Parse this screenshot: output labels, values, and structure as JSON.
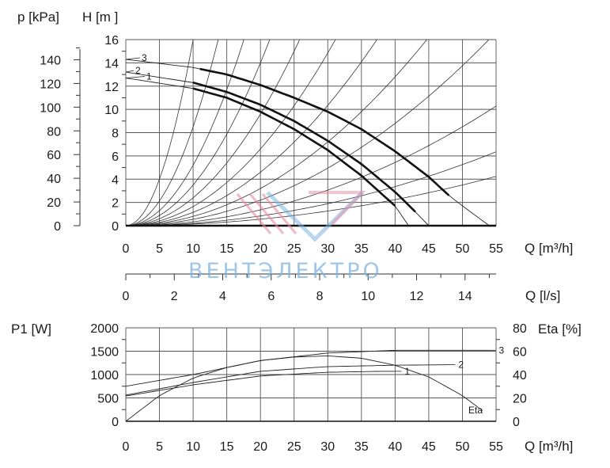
{
  "chart_data": [
    {
      "type": "line",
      "name_hint": "pump-head-curve",
      "ylabel_left_1": "p [kPa]",
      "ylabel_left_2": "H [m ]",
      "xlabel": "Q [m³/h]",
      "x_ticks": [
        "0",
        "5",
        "10",
        "15",
        "20",
        "25",
        "30",
        "35",
        "40",
        "45",
        "50",
        "55"
      ],
      "x_range": [
        0,
        55
      ],
      "h_ticks": [
        "0",
        "2",
        "4",
        "6",
        "8",
        "10",
        "12",
        "14",
        "16"
      ],
      "h_range": [
        0,
        16
      ],
      "p_ticks": [
        "0",
        "20",
        "40",
        "60",
        "80",
        "100",
        "120",
        "140"
      ],
      "p_range": [
        0,
        157
      ],
      "grid": true,
      "secondary_x": {
        "xlabel": "Q [l/s]",
        "ticks": [
          "0",
          "2",
          "4",
          "6",
          "8",
          "10",
          "12",
          "14"
        ],
        "range": [
          0,
          15.28
        ]
      },
      "series": [
        {
          "name": "1",
          "x": [
            0,
            10,
            15,
            20,
            25,
            30,
            35,
            40,
            42
          ],
          "y": [
            12.7,
            11.8,
            11.0,
            9.8,
            8.3,
            6.5,
            4.3,
            1.7,
            0
          ],
          "bold_range": [
            10,
            40
          ]
        },
        {
          "name": "2",
          "x": [
            0,
            10,
            15,
            20,
            25,
            30,
            35,
            40,
            43,
            45
          ],
          "y": [
            13.2,
            12.3,
            11.5,
            10.4,
            9.0,
            7.3,
            5.3,
            2.9,
            1.2,
            0
          ],
          "bold_range": [
            10,
            43
          ]
        },
        {
          "name": "3",
          "x": [
            0,
            10,
            15,
            20,
            25,
            30,
            35,
            40,
            45,
            48,
            50,
            54
          ],
          "y": [
            14.3,
            13.6,
            13.0,
            12.1,
            11.0,
            9.8,
            8.3,
            6.4,
            4.2,
            2.6,
            1.7,
            0
          ],
          "bold_range": [
            11,
            48
          ]
        }
      ],
      "system_curves_k": [
        0.16,
        0.085,
        0.052,
        0.035,
        0.024,
        0.0165,
        0.0115,
        0.008,
        0.0055,
        0.0034,
        0.0021,
        0.0014
      ]
    },
    {
      "type": "line",
      "name_hint": "power-efficiency-curve",
      "ylabel_left": "P1 [W]",
      "ylabel_right": "Eta [%]",
      "xlabel": "Q [m³/h]",
      "x_ticks": [
        "0",
        "5",
        "10",
        "15",
        "20",
        "25",
        "30",
        "35",
        "40",
        "45",
        "50",
        "55"
      ],
      "x_range": [
        0,
        55
      ],
      "p1_ticks": [
        "0",
        "500",
        "1000",
        "1500",
        "2000"
      ],
      "p1_range": [
        0,
        2000
      ],
      "eta_ticks": [
        "0",
        "20",
        "40",
        "60",
        "80"
      ],
      "eta_range": [
        0,
        80
      ],
      "grid": true,
      "series": [
        {
          "name": "1",
          "axis": "P1",
          "x": [
            0,
            10,
            20,
            30,
            38,
            40
          ],
          "y": [
            540,
            780,
            970,
            1050,
            1070,
            1070
          ]
        },
        {
          "name": "2",
          "axis": "P1",
          "x": [
            0,
            10,
            20,
            30,
            40,
            48
          ],
          "y": [
            560,
            830,
            1070,
            1170,
            1200,
            1210
          ]
        },
        {
          "name": "3",
          "axis": "P1",
          "x": [
            0,
            10,
            20,
            30,
            40,
            54
          ],
          "y": [
            750,
            1000,
            1300,
            1460,
            1520,
            1520
          ]
        },
        {
          "name": "Eta",
          "axis": "Eta",
          "x": [
            0,
            5,
            10,
            15,
            20,
            25,
            30,
            35,
            40,
            45,
            50,
            53
          ],
          "y": [
            0,
            22,
            37,
            46,
            52,
            55,
            56,
            54,
            48,
            38,
            22,
            9
          ]
        }
      ]
    }
  ],
  "watermark": {
    "text": "ВЕНТЭЛЕКТРО",
    "color_blue": "#7db4e0",
    "color_red": "#e88aa0"
  }
}
